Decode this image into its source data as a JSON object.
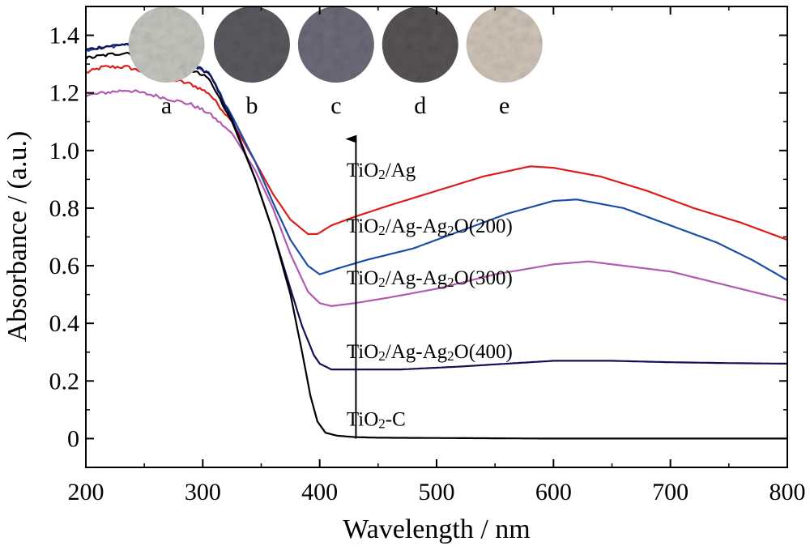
{
  "chart_data": {
    "type": "line",
    "title": "",
    "xlabel": "Wavelength / nm",
    "ylabel": "Absorbance / (a.u.)",
    "xlim": [
      200,
      800
    ],
    "ylim": [
      -0.1,
      1.5
    ],
    "grid": false,
    "x_ticks": [
      200,
      300,
      400,
      500,
      600,
      700,
      800
    ],
    "x_tick_labels": [
      "200",
      "300",
      "400",
      "500",
      "600",
      "700",
      "800"
    ],
    "y_ticks": [
      0,
      0.2,
      0.4,
      0.6,
      0.8,
      1.0,
      1.2,
      1.4
    ],
    "y_tick_labels": [
      "0",
      "0.2",
      "0.4",
      "0.6",
      "0.8",
      "1.0",
      "1.2",
      "1.4"
    ],
    "series": [
      {
        "name": "TiO2/Ag",
        "color": "#dd1c1c",
        "x": [
          200,
          215,
          235,
          260,
          290,
          305,
          325,
          345,
          360,
          375,
          390,
          398,
          410,
          430,
          460,
          500,
          540,
          580,
          600,
          640,
          680,
          720,
          760,
          800
        ],
        "y": [
          1.27,
          1.29,
          1.29,
          1.26,
          1.23,
          1.2,
          1.1,
          0.96,
          0.85,
          0.76,
          0.71,
          0.71,
          0.74,
          0.77,
          0.81,
          0.86,
          0.91,
          0.945,
          0.94,
          0.91,
          0.86,
          0.8,
          0.75,
          0.69
        ]
      },
      {
        "name": "TiO2/Ag-Ag2O(200)",
        "color": "#1b4fa6",
        "x": [
          200,
          220,
          235,
          260,
          290,
          305,
          325,
          345,
          360,
          375,
          390,
          400,
          415,
          440,
          480,
          520,
          560,
          600,
          620,
          660,
          700,
          740,
          770,
          800
        ],
        "y": [
          1.35,
          1.36,
          1.37,
          1.32,
          1.3,
          1.27,
          1.12,
          0.96,
          0.82,
          0.69,
          0.6,
          0.57,
          0.59,
          0.62,
          0.66,
          0.72,
          0.78,
          0.825,
          0.83,
          0.8,
          0.74,
          0.68,
          0.62,
          0.55
        ]
      },
      {
        "name": "TiO2/Ag-Ag2O(300)",
        "color": "#b05ab0",
        "x": [
          200,
          215,
          235,
          260,
          290,
          305,
          325,
          345,
          360,
          375,
          390,
          400,
          410,
          430,
          460,
          500,
          550,
          600,
          630,
          660,
          700,
          740,
          770,
          800
        ],
        "y": [
          1.19,
          1.2,
          1.21,
          1.19,
          1.16,
          1.13,
          1.06,
          0.93,
          0.8,
          0.64,
          0.51,
          0.47,
          0.46,
          0.47,
          0.49,
          0.52,
          0.57,
          0.605,
          0.615,
          0.6,
          0.58,
          0.54,
          0.51,
          0.48
        ]
      },
      {
        "name": "TiO2/Ag-Ag2O(400)",
        "color": "#111155",
        "x": [
          200,
          215,
          235,
          260,
          290,
          305,
          325,
          345,
          360,
          375,
          385,
          395,
          400,
          410,
          430,
          470,
          520,
          560,
          600,
          650,
          700,
          750,
          800
        ],
        "y": [
          1.35,
          1.36,
          1.37,
          1.33,
          1.3,
          1.27,
          1.11,
          0.9,
          0.72,
          0.52,
          0.39,
          0.29,
          0.26,
          0.24,
          0.24,
          0.24,
          0.25,
          0.26,
          0.27,
          0.27,
          0.265,
          0.262,
          0.26
        ]
      },
      {
        "name": "TiO2-C",
        "color": "#000000",
        "x": [
          200,
          215,
          235,
          260,
          290,
          305,
          325,
          345,
          360,
          375,
          385,
          392,
          398,
          405,
          415,
          430,
          450,
          500,
          600,
          700,
          800
        ],
        "y": [
          1.32,
          1.33,
          1.34,
          1.31,
          1.28,
          1.25,
          1.1,
          0.9,
          0.72,
          0.5,
          0.3,
          0.15,
          0.06,
          0.02,
          0.01,
          0.005,
          0.003,
          0.002,
          0.0,
          0.0,
          0.0
        ]
      }
    ],
    "annotations": [
      {
        "text_parts": [
          [
            "TiO",
            false
          ],
          [
            "2",
            true
          ],
          [
            "/Ag",
            false
          ]
        ],
        "x": 423,
        "y": 0.91
      },
      {
        "text_parts": [
          [
            "TiO",
            false
          ],
          [
            "2",
            true
          ],
          [
            "/Ag-Ag",
            false
          ],
          [
            "2",
            true
          ],
          [
            "O(200)",
            false
          ]
        ],
        "x": 423,
        "y": 0.715
      },
      {
        "text_parts": [
          [
            "TiO",
            false
          ],
          [
            "2",
            true
          ],
          [
            "/Ag-Ag",
            false
          ],
          [
            "2",
            true
          ],
          [
            "O(300)",
            false
          ]
        ],
        "x": 423,
        "y": 0.535
      },
      {
        "text_parts": [
          [
            "TiO",
            false
          ],
          [
            "2",
            true
          ],
          [
            "/Ag-Ag",
            false
          ],
          [
            "2",
            true
          ],
          [
            "O(400)",
            false
          ]
        ],
        "x": 423,
        "y": 0.28
      },
      {
        "text_parts": [
          [
            "TiO",
            false
          ],
          [
            "2",
            true
          ],
          [
            "-C",
            false
          ]
        ],
        "x": 423,
        "y": 0.045
      }
    ],
    "arrow": {
      "x": 431,
      "y_from": 0.0,
      "y_to": 1.04
    },
    "inset_photos": [
      {
        "label": "a",
        "color": "#c6c6c0",
        "wavelength_center": 269
      },
      {
        "label": "b",
        "color": "#5c5a60",
        "wavelength_center": 342
      },
      {
        "label": "c",
        "color": "#6d6b7a",
        "wavelength_center": 414
      },
      {
        "label": "d",
        "color": "#585456",
        "wavelength_center": 486
      },
      {
        "label": "e",
        "color": "#cfc4b8",
        "wavelength_center": 558
      }
    ]
  }
}
